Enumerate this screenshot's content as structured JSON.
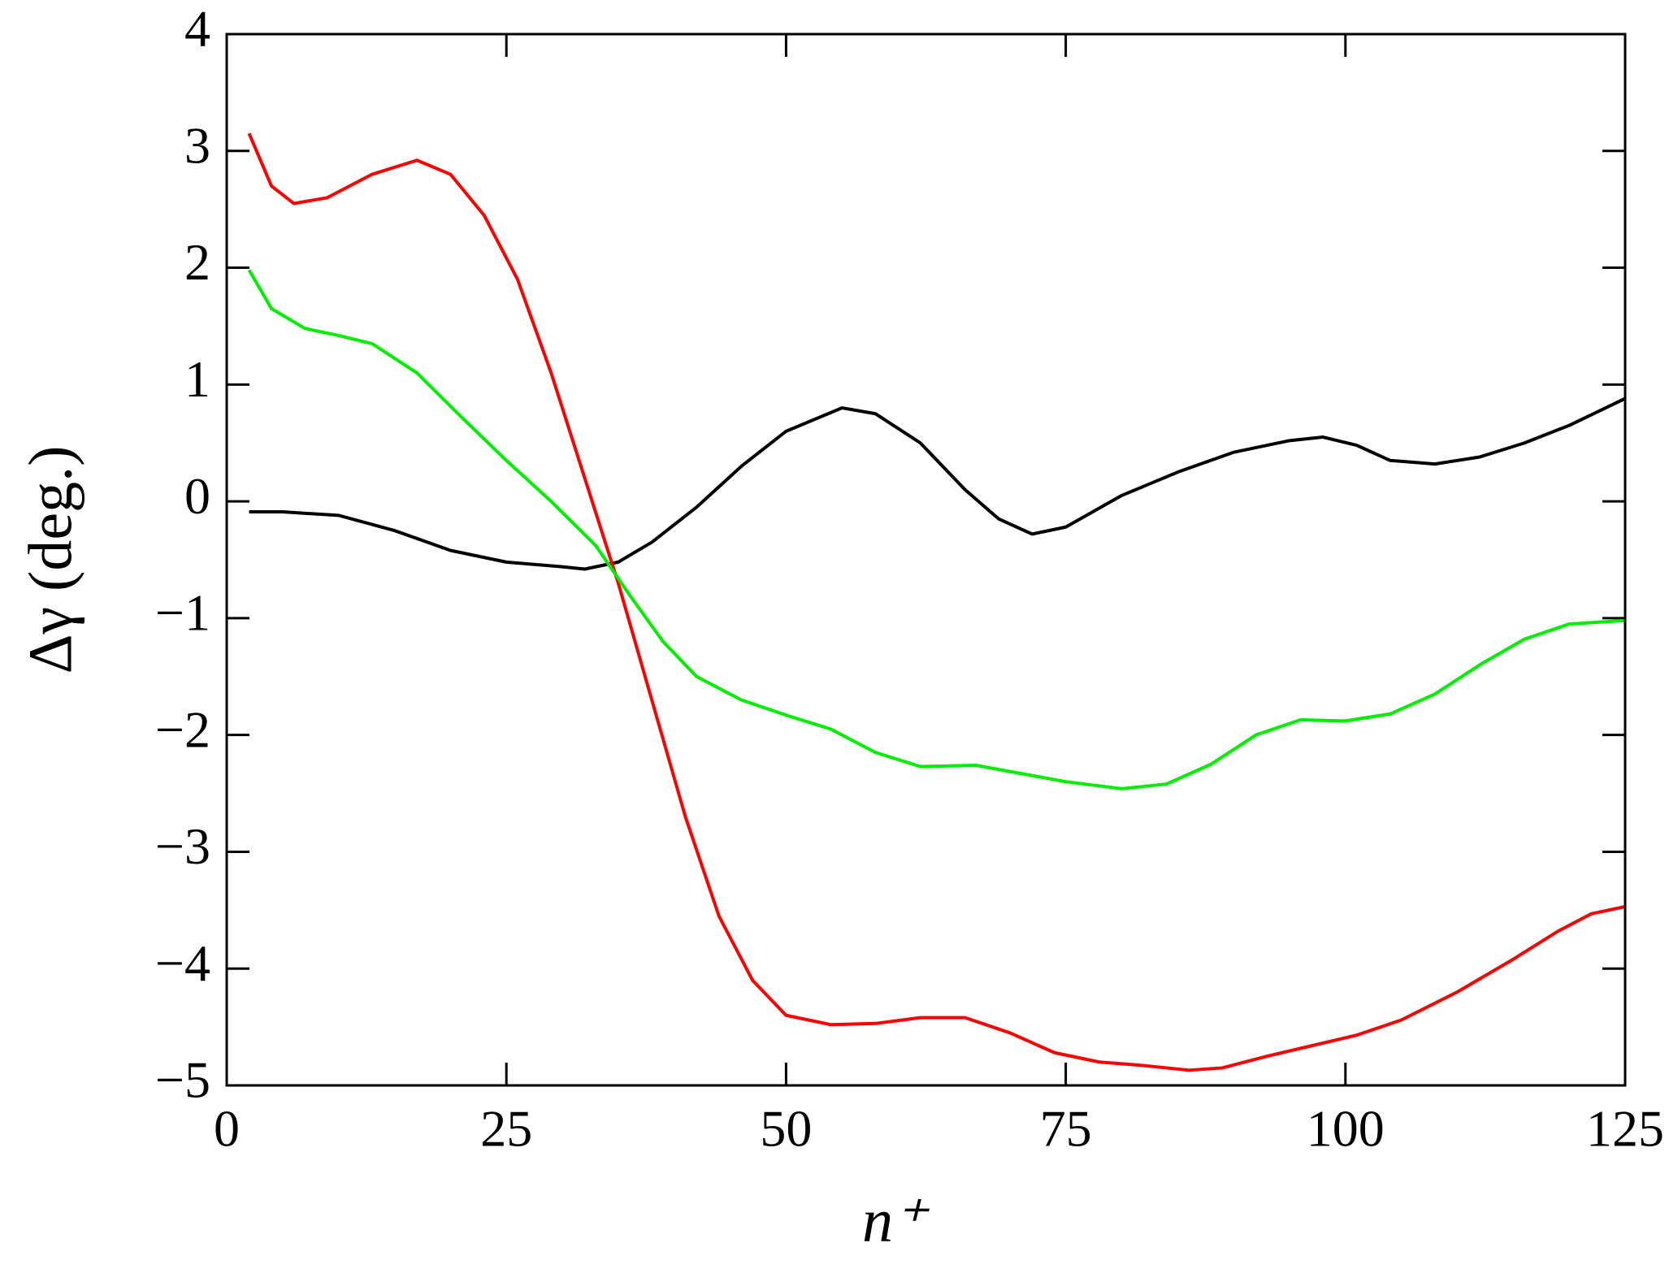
{
  "chart_data": {
    "type": "line",
    "xlabel": "n⁺",
    "ylabel": "Δγ (deg.)",
    "xlim": [
      0,
      125
    ],
    "xticks": [
      0,
      25,
      50,
      75,
      100,
      125
    ],
    "ylim": [
      -5,
      4
    ],
    "yticks": [
      {
        "value": -5,
        "label": "−5"
      },
      {
        "value": -4,
        "label": "−4"
      },
      {
        "value": -3,
        "label": "−3"
      },
      {
        "value": -2,
        "label": "−2"
      },
      {
        "value": -1,
        "label": "−1"
      },
      0,
      1,
      2,
      3,
      4
    ],
    "series": [
      {
        "color": "#000000",
        "x": [
          2,
          5,
          10,
          15,
          20,
          25,
          30,
          32,
          35,
          38,
          42,
          46,
          50,
          55,
          58,
          62,
          66,
          69,
          72,
          75,
          80,
          85,
          90,
          95,
          98,
          101,
          104,
          108,
          112,
          116,
          120,
          125
        ],
        "values": [
          -0.09,
          -0.09,
          -0.12,
          -0.25,
          -0.42,
          -0.52,
          -0.56,
          -0.58,
          -0.52,
          -0.35,
          -0.05,
          0.3,
          0.6,
          0.8,
          0.75,
          0.5,
          0.1,
          -0.15,
          -0.28,
          -0.22,
          0.05,
          0.25,
          0.42,
          0.52,
          0.55,
          0.48,
          0.35,
          0.32,
          0.38,
          0.5,
          0.65,
          0.88
        ]
      },
      {
        "color": "#ff0000",
        "x": [
          2,
          4,
          6,
          9,
          13,
          17,
          20,
          23,
          26,
          29,
          32,
          35,
          38,
          41,
          44,
          47,
          50,
          54,
          58,
          62,
          66,
          70,
          74,
          78,
          82,
          86,
          89,
          93,
          97,
          101,
          105,
          110,
          115,
          119,
          122,
          125
        ],
        "values": [
          3.15,
          2.7,
          2.55,
          2.6,
          2.8,
          2.92,
          2.8,
          2.45,
          1.9,
          1.1,
          0.2,
          -0.7,
          -1.7,
          -2.7,
          -3.55,
          -4.1,
          -4.4,
          -4.48,
          -4.47,
          -4.42,
          -4.42,
          -4.55,
          -4.72,
          -4.8,
          -4.83,
          -4.87,
          -4.85,
          -4.75,
          -4.66,
          -4.57,
          -4.44,
          -4.2,
          -3.92,
          -3.68,
          -3.53,
          -3.47
        ]
      },
      {
        "color": "#00ee00",
        "x": [
          2,
          4,
          7,
          10,
          13,
          17,
          21,
          25,
          29,
          33,
          36,
          39,
          42,
          46,
          50,
          54,
          58,
          62,
          67,
          71,
          75,
          80,
          84,
          88,
          92,
          96,
          100,
          104,
          108,
          112,
          116,
          120,
          125
        ],
        "values": [
          1.98,
          1.65,
          1.48,
          1.42,
          1.35,
          1.1,
          0.72,
          0.35,
          0.0,
          -0.38,
          -0.8,
          -1.2,
          -1.5,
          -1.7,
          -1.83,
          -1.95,
          -2.15,
          -2.27,
          -2.26,
          -2.33,
          -2.4,
          -2.46,
          -2.42,
          -2.25,
          -2.0,
          -1.87,
          -1.88,
          -1.82,
          -1.65,
          -1.4,
          -1.18,
          -1.05,
          -1.02
        ]
      }
    ]
  }
}
